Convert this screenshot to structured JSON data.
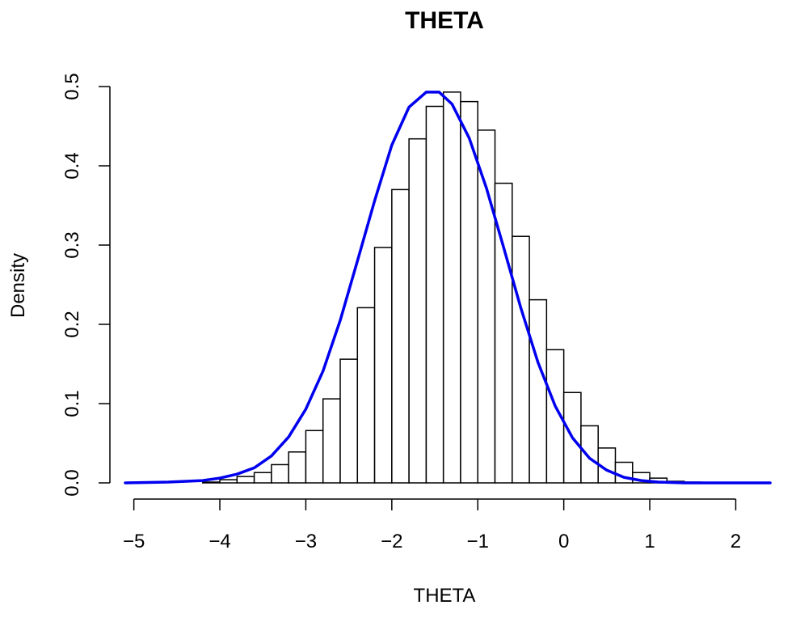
{
  "chart_data": {
    "type": "bar",
    "title": "THETA",
    "xlabel": "THETA",
    "ylabel": "Density",
    "xlim": [
      -5.1,
      2.4
    ],
    "ylim": [
      0,
      0.5
    ],
    "x_ticks": [
      -5,
      -4,
      -3,
      -2,
      -1,
      0,
      1,
      2
    ],
    "x_tick_labels": [
      "−5",
      "−4",
      "−3",
      "−2",
      "−1",
      "0",
      "1",
      "2"
    ],
    "y_ticks": [
      0.0,
      0.1,
      0.2,
      0.3,
      0.4,
      0.5
    ],
    "y_tick_labels": [
      "0.0",
      "0.1",
      "0.2",
      "0.3",
      "0.4",
      "0.5"
    ],
    "grid": false,
    "histogram": {
      "bin_width": 0.2,
      "bin_edges_start": -4.2,
      "densities": [
        0.001,
        0.004,
        0.008,
        0.013,
        0.023,
        0.039,
        0.066,
        0.106,
        0.156,
        0.221,
        0.297,
        0.37,
        0.434,
        0.475,
        0.493,
        0.481,
        0.445,
        0.378,
        0.311,
        0.231,
        0.168,
        0.114,
        0.072,
        0.044,
        0.026,
        0.013,
        0.006,
        0.002,
        0.001
      ]
    },
    "density_curve": {
      "color": "#0000ee",
      "x": [
        -5.1,
        -4.6,
        -4.2,
        -4.0,
        -3.8,
        -3.6,
        -3.4,
        -3.2,
        -3.0,
        -2.8,
        -2.6,
        -2.4,
        -2.2,
        -2.0,
        -1.8,
        -1.6,
        -1.45,
        -1.3,
        -1.1,
        -0.9,
        -0.7,
        -0.5,
        -0.3,
        -0.1,
        0.1,
        0.3,
        0.5,
        0.7,
        0.9,
        1.1,
        1.4,
        1.8,
        2.4
      ],
      "y": [
        0.0,
        0.001,
        0.003,
        0.006,
        0.011,
        0.019,
        0.034,
        0.058,
        0.093,
        0.141,
        0.205,
        0.28,
        0.356,
        0.426,
        0.474,
        0.493,
        0.493,
        0.478,
        0.435,
        0.372,
        0.297,
        0.221,
        0.152,
        0.097,
        0.057,
        0.031,
        0.016,
        0.007,
        0.003,
        0.001,
        0.0,
        0.0,
        0.0
      ]
    }
  }
}
